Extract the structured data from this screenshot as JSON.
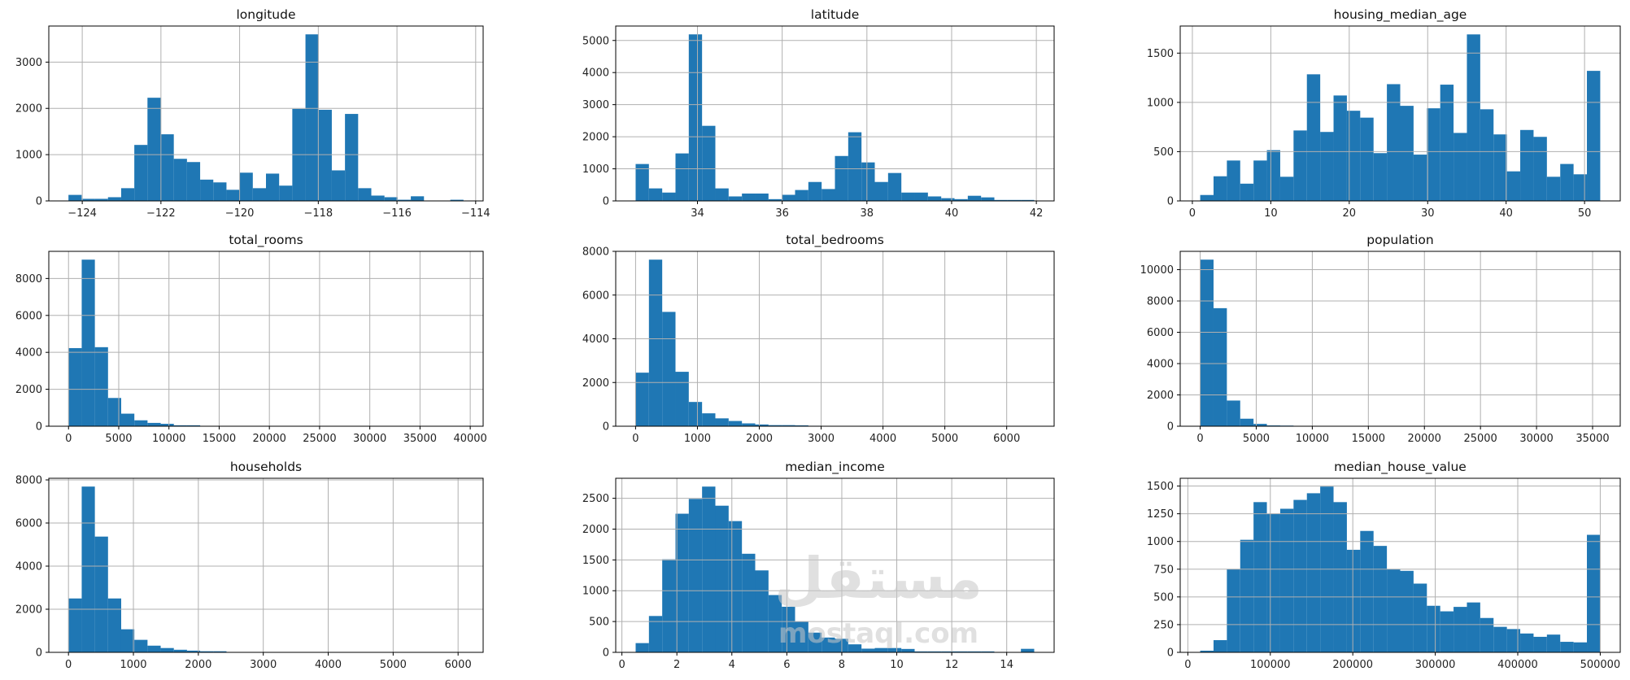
{
  "watermark": {
    "arabic": "مستقل",
    "latin": "mostaql.com"
  },
  "colors": {
    "bar": "#1f77b4",
    "grid": "#b0b0b0",
    "axis": "#000000"
  },
  "chart_data": [
    {
      "type": "bar",
      "title": "longitude",
      "bins": 30,
      "range": [
        -124.35,
        -114.31
      ],
      "xlim": [
        -124.85,
        -113.81
      ],
      "ylim": [
        0,
        3780
      ],
      "counts": [
        130,
        45,
        45,
        80,
        275,
        1210,
        2230,
        1440,
        910,
        840,
        460,
        400,
        240,
        610,
        275,
        590,
        330,
        1990,
        3600,
        1970,
        660,
        1880,
        275,
        115,
        80,
        25,
        100,
        5,
        5,
        25
      ],
      "xticks": [
        {
          "v": -124,
          "label": "−124"
        },
        {
          "v": -122,
          "label": "−122"
        },
        {
          "v": -120,
          "label": "−120"
        },
        {
          "v": -118,
          "label": "−118"
        },
        {
          "v": -116,
          "label": "−116"
        },
        {
          "v": -114,
          "label": "−114"
        }
      ],
      "yticks": [
        {
          "v": 0,
          "label": "0"
        },
        {
          "v": 1000,
          "label": "1000"
        },
        {
          "v": 2000,
          "label": "2000"
        },
        {
          "v": 3000,
          "label": "3000"
        }
      ]
    },
    {
      "type": "bar",
      "title": "latitude",
      "bins": 30,
      "range": [
        32.54,
        41.95
      ],
      "xlim": [
        32.07,
        42.42
      ],
      "ylim": [
        0,
        5450
      ],
      "counts": [
        1150,
        390,
        260,
        1480,
        5190,
        2340,
        390,
        140,
        230,
        230,
        55,
        190,
        340,
        590,
        370,
        1400,
        2140,
        1200,
        590,
        870,
        260,
        260,
        140,
        85,
        55,
        160,
        110,
        30,
        30,
        30
      ],
      "xticks": [
        {
          "v": 34,
          "label": "34"
        },
        {
          "v": 36,
          "label": "36"
        },
        {
          "v": 38,
          "label": "38"
        },
        {
          "v": 40,
          "label": "40"
        },
        {
          "v": 42,
          "label": "42"
        }
      ],
      "yticks": [
        {
          "v": 0,
          "label": "0"
        },
        {
          "v": 1000,
          "label": "1000"
        },
        {
          "v": 2000,
          "label": "2000"
        },
        {
          "v": 3000,
          "label": "3000"
        },
        {
          "v": 4000,
          "label": "4000"
        },
        {
          "v": 5000,
          "label": "5000"
        }
      ]
    },
    {
      "type": "bar",
      "title": "housing_median_age",
      "bins": 30,
      "range": [
        1,
        52
      ],
      "xlim": [
        -1.55,
        54.55
      ],
      "ylim": [
        0,
        1775
      ],
      "counts": [
        60,
        250,
        410,
        175,
        410,
        515,
        245,
        715,
        1285,
        700,
        1070,
        915,
        845,
        485,
        1185,
        965,
        470,
        940,
        1180,
        690,
        1690,
        930,
        675,
        300,
        720,
        650,
        245,
        375,
        270,
        1320
      ],
      "xticks": [
        {
          "v": 0,
          "label": "0"
        },
        {
          "v": 10,
          "label": "10"
        },
        {
          "v": 20,
          "label": "20"
        },
        {
          "v": 30,
          "label": "30"
        },
        {
          "v": 40,
          "label": "40"
        },
        {
          "v": 50,
          "label": "50"
        }
      ],
      "yticks": [
        {
          "v": 0,
          "label": "0"
        },
        {
          "v": 500,
          "label": "500"
        },
        {
          "v": 1000,
          "label": "1000"
        },
        {
          "v": 1500,
          "label": "1500"
        }
      ]
    },
    {
      "type": "bar",
      "title": "total_rooms",
      "bins": 30,
      "range": [
        2,
        39320
      ],
      "xlim": [
        -1964,
        41286
      ],
      "ylim": [
        0,
        9470
      ],
      "counts": [
        4230,
        9020,
        4280,
        1530,
        680,
        320,
        180,
        130,
        50,
        50,
        20,
        10,
        8,
        5,
        4,
        3,
        2,
        2,
        1,
        1,
        0,
        1,
        0,
        0,
        0,
        0,
        0,
        1,
        0,
        1
      ],
      "xticks": [
        {
          "v": 0,
          "label": "0"
        },
        {
          "v": 5000,
          "label": "5000"
        },
        {
          "v": 10000,
          "label": "10000"
        },
        {
          "v": 15000,
          "label": "15000"
        },
        {
          "v": 20000,
          "label": "20000"
        },
        {
          "v": 25000,
          "label": "25000"
        },
        {
          "v": 30000,
          "label": "30000"
        },
        {
          "v": 35000,
          "label": "35000"
        },
        {
          "v": 40000,
          "label": "40000"
        }
      ],
      "yticks": [
        {
          "v": 0,
          "label": "0"
        },
        {
          "v": 2000,
          "label": "2000"
        },
        {
          "v": 4000,
          "label": "4000"
        },
        {
          "v": 6000,
          "label": "6000"
        },
        {
          "v": 8000,
          "label": "8000"
        }
      ]
    },
    {
      "type": "bar",
      "title": "total_bedrooms",
      "bins": 30,
      "range": [
        1,
        6445
      ],
      "xlim": [
        -321,
        6767
      ],
      "ylim": [
        0,
        8000
      ],
      "counts": [
        2450,
        7620,
        5230,
        2490,
        1110,
        590,
        360,
        240,
        130,
        80,
        50,
        50,
        40,
        20,
        10,
        8,
        6,
        4,
        3,
        2,
        2,
        1,
        1,
        1,
        0,
        1,
        0,
        0,
        0,
        1
      ],
      "xticks": [
        {
          "v": 0,
          "label": "0"
        },
        {
          "v": 1000,
          "label": "1000"
        },
        {
          "v": 2000,
          "label": "2000"
        },
        {
          "v": 3000,
          "label": "3000"
        },
        {
          "v": 4000,
          "label": "4000"
        },
        {
          "v": 5000,
          "label": "5000"
        },
        {
          "v": 6000,
          "label": "6000"
        }
      ],
      "yticks": [
        {
          "v": 0,
          "label": "0"
        },
        {
          "v": 2000,
          "label": "2000"
        },
        {
          "v": 4000,
          "label": "4000"
        },
        {
          "v": 6000,
          "label": "6000"
        },
        {
          "v": 8000,
          "label": "8000"
        }
      ]
    },
    {
      "type": "bar",
      "title": "population",
      "bins": 30,
      "range": [
        3,
        35682
      ],
      "xlim": [
        -1781,
        37466
      ],
      "ylim": [
        0,
        11170
      ],
      "counts": [
        10640,
        7540,
        1640,
        480,
        150,
        50,
        40,
        15,
        5,
        3,
        2,
        2,
        1,
        1,
        1,
        0,
        0,
        0,
        0,
        0,
        0,
        0,
        0,
        0,
        0,
        0,
        0,
        0,
        0,
        1
      ],
      "xticks": [
        {
          "v": 0,
          "label": "0"
        },
        {
          "v": 5000,
          "label": "5000"
        },
        {
          "v": 10000,
          "label": "10000"
        },
        {
          "v": 15000,
          "label": "15000"
        },
        {
          "v": 20000,
          "label": "20000"
        },
        {
          "v": 25000,
          "label": "25000"
        },
        {
          "v": 30000,
          "label": "30000"
        },
        {
          "v": 35000,
          "label": "35000"
        }
      ],
      "yticks": [
        {
          "v": 0,
          "label": "0"
        },
        {
          "v": 2000,
          "label": "2000"
        },
        {
          "v": 4000,
          "label": "4000"
        },
        {
          "v": 6000,
          "label": "6000"
        },
        {
          "v": 8000,
          "label": "8000"
        },
        {
          "v": 10000,
          "label": "10000"
        }
      ]
    },
    {
      "type": "bar",
      "title": "households",
      "bins": 30,
      "range": [
        1,
        6082
      ],
      "xlim": [
        -303,
        6386
      ],
      "ylim": [
        0,
        8075
      ],
      "counts": [
        2500,
        7690,
        5370,
        2500,
        1070,
        580,
        310,
        200,
        120,
        80,
        50,
        50,
        15,
        8,
        5,
        4,
        3,
        2,
        2,
        1,
        1,
        1,
        0,
        1,
        0,
        0,
        0,
        1,
        0,
        1
      ],
      "xticks": [
        {
          "v": 0,
          "label": "0"
        },
        {
          "v": 1000,
          "label": "1000"
        },
        {
          "v": 2000,
          "label": "2000"
        },
        {
          "v": 3000,
          "label": "3000"
        },
        {
          "v": 4000,
          "label": "4000"
        },
        {
          "v": 5000,
          "label": "5000"
        },
        {
          "v": 6000,
          "label": "6000"
        }
      ],
      "yticks": [
        {
          "v": 0,
          "label": "0"
        },
        {
          "v": 2000,
          "label": "2000"
        },
        {
          "v": 4000,
          "label": "4000"
        },
        {
          "v": 6000,
          "label": "6000"
        },
        {
          "v": 8000,
          "label": "8000"
        }
      ]
    },
    {
      "type": "bar",
      "title": "median_income",
      "bins": 30,
      "range": [
        0.4999,
        15.0001
      ],
      "xlim": [
        -0.225,
        15.725
      ],
      "ylim": [
        0,
        2825
      ],
      "counts": [
        150,
        590,
        1510,
        2250,
        2490,
        2690,
        2380,
        2130,
        1600,
        1330,
        930,
        740,
        500,
        320,
        240,
        220,
        130,
        60,
        70,
        70,
        55,
        15,
        15,
        15,
        15,
        15,
        15,
        2,
        2,
        57
      ],
      "xticks": [
        {
          "v": 0,
          "label": "0"
        },
        {
          "v": 2,
          "label": "2"
        },
        {
          "v": 4,
          "label": "4"
        },
        {
          "v": 6,
          "label": "6"
        },
        {
          "v": 8,
          "label": "8"
        },
        {
          "v": 10,
          "label": "10"
        },
        {
          "v": 12,
          "label": "12"
        },
        {
          "v": 14,
          "label": "14"
        }
      ],
      "yticks": [
        {
          "v": 0,
          "label": "0"
        },
        {
          "v": 500,
          "label": "500"
        },
        {
          "v": 1000,
          "label": "1000"
        },
        {
          "v": 1500,
          "label": "1500"
        },
        {
          "v": 2000,
          "label": "2000"
        },
        {
          "v": 2500,
          "label": "2500"
        }
      ]
    },
    {
      "type": "bar",
      "title": "median_house_value",
      "bins": 30,
      "range": [
        14999,
        500001
      ],
      "xlim": [
        -9251,
        524251
      ],
      "ylim": [
        0,
        1570
      ],
      "counts": [
        15,
        110,
        750,
        1015,
        1355,
        1250,
        1295,
        1375,
        1435,
        1495,
        1355,
        925,
        1095,
        960,
        750,
        735,
        620,
        420,
        370,
        410,
        450,
        310,
        230,
        210,
        170,
        140,
        160,
        95,
        90,
        1060
      ],
      "xticks": [
        {
          "v": 0,
          "label": "0"
        },
        {
          "v": 100000,
          "label": "100000"
        },
        {
          "v": 200000,
          "label": "200000"
        },
        {
          "v": 300000,
          "label": "300000"
        },
        {
          "v": 400000,
          "label": "400000"
        },
        {
          "v": 500000,
          "label": "500000"
        }
      ],
      "yticks": [
        {
          "v": 0,
          "label": "0"
        },
        {
          "v": 250,
          "label": "250"
        },
        {
          "v": 500,
          "label": "500"
        },
        {
          "v": 750,
          "label": "750"
        },
        {
          "v": 1000,
          "label": "1000"
        },
        {
          "v": 1250,
          "label": "1250"
        },
        {
          "v": 1500,
          "label": "1500"
        }
      ]
    }
  ]
}
